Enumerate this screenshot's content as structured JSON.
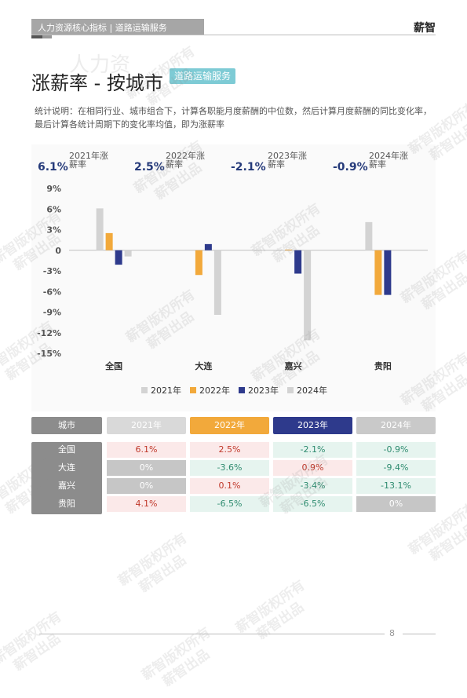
{
  "header": {
    "title": "人力资源核心指标  |  道路运输服务",
    "brand": "薪智"
  },
  "background_word": "人力资",
  "title": "涨薪率 - 按城市",
  "tag": "道路运输服务",
  "description": "统计说明：在相同行业、城市组合下，计算各职能月度薪酬的中位数，然后计算月度薪酬的同比变化率，最后计算各统计周期下的变化率均值，即为涨薪率",
  "stats": [
    {
      "value": "6.1%",
      "label": "2021年涨薪率"
    },
    {
      "value": "2.5%",
      "label": "2022年涨薪率"
    },
    {
      "value": "-2.1%",
      "label": "2023年涨薪率"
    },
    {
      "value": "-0.9%",
      "label": "2024年涨薪率"
    }
  ],
  "chart_data": {
    "type": "bar",
    "categories": [
      "全国",
      "大连",
      "嘉兴",
      "贵阳"
    ],
    "series": [
      {
        "name": "2021年",
        "color": "#d3d3d3",
        "values": [
          6.1,
          0,
          0,
          4.1
        ]
      },
      {
        "name": "2022年",
        "color": "#f2a93b",
        "values": [
          2.5,
          -3.6,
          0.1,
          -6.5
        ]
      },
      {
        "name": "2023年",
        "color": "#2e3a8c",
        "values": [
          -2.1,
          0.9,
          -3.4,
          -6.5
        ]
      },
      {
        "name": "2024年",
        "color": "#d3d3d3",
        "values": [
          -0.9,
          -9.4,
          -13.1,
          0
        ]
      }
    ],
    "y_ticks": [
      "9%",
      "6%",
      "3%",
      "0",
      "-3%",
      "-6%",
      "-9%",
      "-12%",
      "-15%"
    ],
    "ylim": [
      -15,
      9
    ],
    "legend": "bottom",
    "grid": false
  },
  "table": {
    "header": [
      "城市",
      "2021年",
      "2022年",
      "2023年",
      "2024年"
    ],
    "header_colors": [
      "#8c8c8c",
      "#d9d9d9",
      "#f2a93b",
      "#2e3a8c",
      "#c9c9c9"
    ],
    "rows": [
      {
        "city": "全国",
        "cells": [
          "6.1%",
          "2.5%",
          "-2.1%",
          "-0.9%"
        ]
      },
      {
        "city": "大连",
        "cells": [
          "0%",
          "-3.6%",
          "0.9%",
          "-9.4%"
        ]
      },
      {
        "city": "嘉兴",
        "cells": [
          "0%",
          "0.1%",
          "-3.4%",
          "-13.1%"
        ]
      },
      {
        "city": "贵阳",
        "cells": [
          "4.1%",
          "-6.5%",
          "-6.5%",
          "0%"
        ]
      }
    ]
  },
  "watermark": [
    "薪智版权所有",
    "薪智出品"
  ],
  "page_number": "8"
}
